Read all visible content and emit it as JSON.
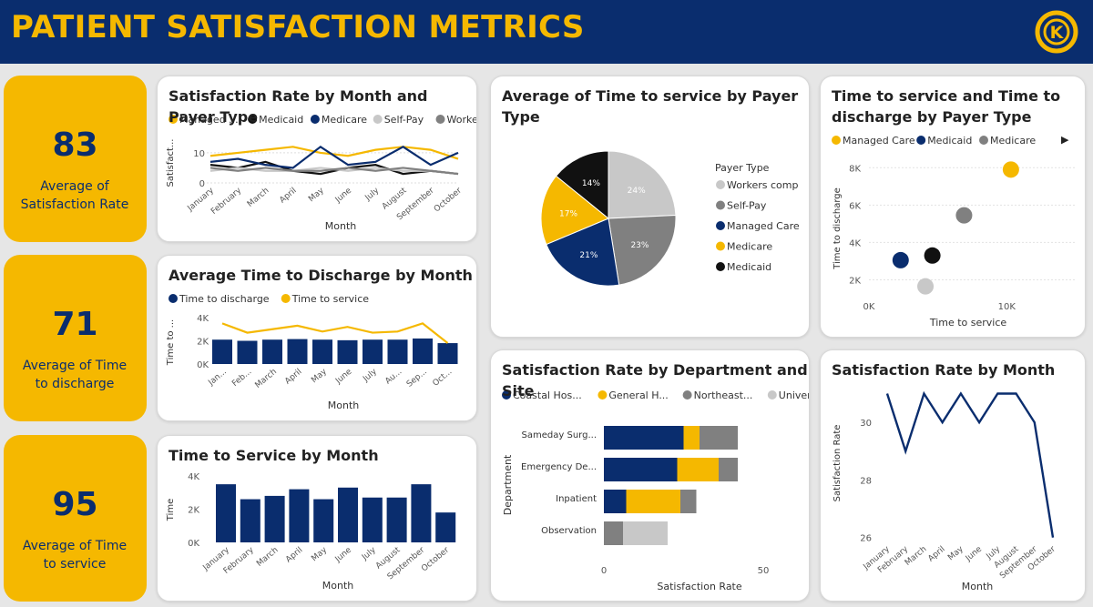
{
  "header": {
    "title": "PATIENT SATISFACTION METRICS",
    "logo_letter": "K"
  },
  "colors": {
    "navy": "#0a2d6e",
    "gold": "#f5b800",
    "gray": "#808080",
    "lightgray": "#c8c8c8",
    "black": "#111111"
  },
  "kpis": [
    {
      "value": "83",
      "label_line1": "Average of",
      "label_line2": "Satisfaction Rate"
    },
    {
      "value": "71",
      "label_line1": "Average of Time",
      "label_line2": "to discharge"
    },
    {
      "value": "95",
      "label_line1": "Average of Time",
      "label_line2": "to service"
    }
  ],
  "months": [
    "January",
    "February",
    "March",
    "April",
    "May",
    "June",
    "July",
    "August",
    "September",
    "October"
  ],
  "months_short": [
    "Jan...",
    "Feb...",
    "March",
    "April",
    "May",
    "June",
    "July",
    "Au...",
    "Sep...",
    "Oct..."
  ],
  "chart_data": [
    {
      "id": "sat_by_month_payer",
      "type": "line",
      "title": "Satisfaction Rate by Month and Payer Type",
      "xlabel": "Month",
      "ylabel": "Satisfact...",
      "yticks": [
        "0",
        "10"
      ],
      "ylim": [
        0,
        13
      ],
      "legend": [
        "Managed ...",
        "Medicaid",
        "Medicare",
        "Self-Pay",
        "Workers ..."
      ],
      "series": [
        {
          "name": "Managed Care",
          "color": "#f5b800",
          "values": [
            9,
            10,
            11,
            12,
            10,
            9,
            11,
            12,
            11,
            8
          ]
        },
        {
          "name": "Medicaid",
          "color": "#111111",
          "values": [
            6,
            5,
            7,
            4,
            3,
            5,
            6,
            3,
            4,
            3
          ]
        },
        {
          "name": "Medicare",
          "color": "#0a2d6e",
          "values": [
            7,
            8,
            6,
            5,
            12,
            6,
            7,
            12,
            6,
            10
          ]
        },
        {
          "name": "Self-Pay",
          "color": "#c8c8c8",
          "values": [
            4,
            5,
            4,
            4,
            5,
            4,
            5,
            4,
            4,
            3
          ]
        },
        {
          "name": "Workers comp",
          "color": "#808080",
          "values": [
            5,
            4,
            5,
            4,
            4,
            5,
            4,
            5,
            4,
            3
          ]
        }
      ]
    },
    {
      "id": "discharge_by_month",
      "type": "bar",
      "title": "Average Time to Discharge by Month",
      "xlabel": "Month",
      "ylabel": "Time to ...",
      "yticks": [
        "0K",
        "2K",
        "4K"
      ],
      "ylim": [
        0,
        4000
      ],
      "legend": [
        "Time to discharge",
        "Time to service"
      ],
      "series": [
        {
          "name": "Time to discharge",
          "color": "#0a2d6e",
          "values": [
            2100,
            2000,
            2100,
            2150,
            2100,
            2050,
            2100,
            2100,
            2200,
            1800
          ]
        },
        {
          "name": "Time to service",
          "color": "#f5b800",
          "values": [
            3500,
            2700,
            3000,
            3300,
            2800,
            3200,
            2700,
            2800,
            3500,
            1800
          ]
        }
      ]
    },
    {
      "id": "service_by_month",
      "type": "bar",
      "title": "Time to Service by Month",
      "xlabel": "Month",
      "ylabel": "Time",
      "yticks": [
        "0K",
        "2K",
        "4K"
      ],
      "ylim": [
        0,
        4000
      ],
      "values": [
        3500,
        2600,
        2800,
        3200,
        2600,
        3300,
        2700,
        2700,
        3500,
        1800
      ]
    },
    {
      "id": "service_by_payer_pie",
      "type": "pie",
      "title": "Average of Time to service by Payer Type",
      "legend_title": "Payer Type",
      "slices": [
        {
          "name": "Workers comp",
          "value": 24,
          "label": "24%",
          "color": "#c8c8c8"
        },
        {
          "name": "Self-Pay",
          "value": 23,
          "label": "23%",
          "color": "#808080"
        },
        {
          "name": "Managed Care",
          "value": 21,
          "label": "21%",
          "color": "#0a2d6e"
        },
        {
          "name": "Medicare",
          "value": 17,
          "label": "17%",
          "color": "#f5b800"
        },
        {
          "name": "Medicaid",
          "value": 14,
          "label": "14%",
          "color": "#111111"
        }
      ]
    },
    {
      "id": "service_discharge_scatter",
      "type": "scatter",
      "title_line1": "Time to service and Time to",
      "title_line2": "discharge by Payer Type",
      "xlabel": "Time to service",
      "ylabel": "Time to discharge",
      "xticks": [
        "0K",
        "10K"
      ],
      "yticks": [
        "2K",
        "4K",
        "6K",
        "8K"
      ],
      "xlim": [
        0,
        15000
      ],
      "ylim": [
        1000,
        8500
      ],
      "legend": [
        "Managed Care",
        "Medicaid",
        "Medicare"
      ],
      "points": [
        {
          "x": 10300,
          "y": 7900,
          "color": "#f5b800"
        },
        {
          "x": 6900,
          "y": 5450,
          "color": "#808080"
        },
        {
          "x": 4600,
          "y": 3300,
          "color": "#111111"
        },
        {
          "x": 2300,
          "y": 3050,
          "color": "#0a2d6e"
        },
        {
          "x": 4100,
          "y": 1650,
          "color": "#c8c8c8"
        }
      ]
    },
    {
      "id": "sat_by_dept_site",
      "type": "bar",
      "orientation": "horizontal-stacked",
      "title": "Satisfaction Rate by Department and Site",
      "xlabel": "Satisfaction Rate",
      "ylabel": "Department",
      "xticks": [
        "0",
        "50"
      ],
      "xlim": [
        0,
        50
      ],
      "legend": [
        "Coastal Hos...",
        "General H...",
        "Northeast...",
        "University ..."
      ],
      "categories": [
        "Sameday Surg...",
        "Emergency De...",
        "Inpatient",
        "Observation"
      ],
      "series": [
        {
          "name": "Coastal Hospital",
          "color": "#0a2d6e",
          "values": [
            25,
            23,
            7,
            0
          ]
        },
        {
          "name": "General Hospital",
          "color": "#f5b800",
          "values": [
            5,
            13,
            17,
            0
          ]
        },
        {
          "name": "Northeast",
          "color": "#808080",
          "values": [
            12,
            6,
            5,
            6
          ]
        },
        {
          "name": "University",
          "color": "#c8c8c8",
          "values": [
            0,
            0,
            0,
            14
          ]
        }
      ]
    },
    {
      "id": "sat_by_month",
      "type": "line",
      "title": "Satisfaction Rate by Month",
      "xlabel": "Month",
      "ylabel": "Satisfaction Rate",
      "yticks": [
        "26",
        "28",
        "30"
      ],
      "ylim": [
        25.8,
        31.3
      ],
      "values": [
        31,
        29,
        31,
        30,
        31,
        30,
        31,
        31,
        30,
        26
      ]
    }
  ]
}
